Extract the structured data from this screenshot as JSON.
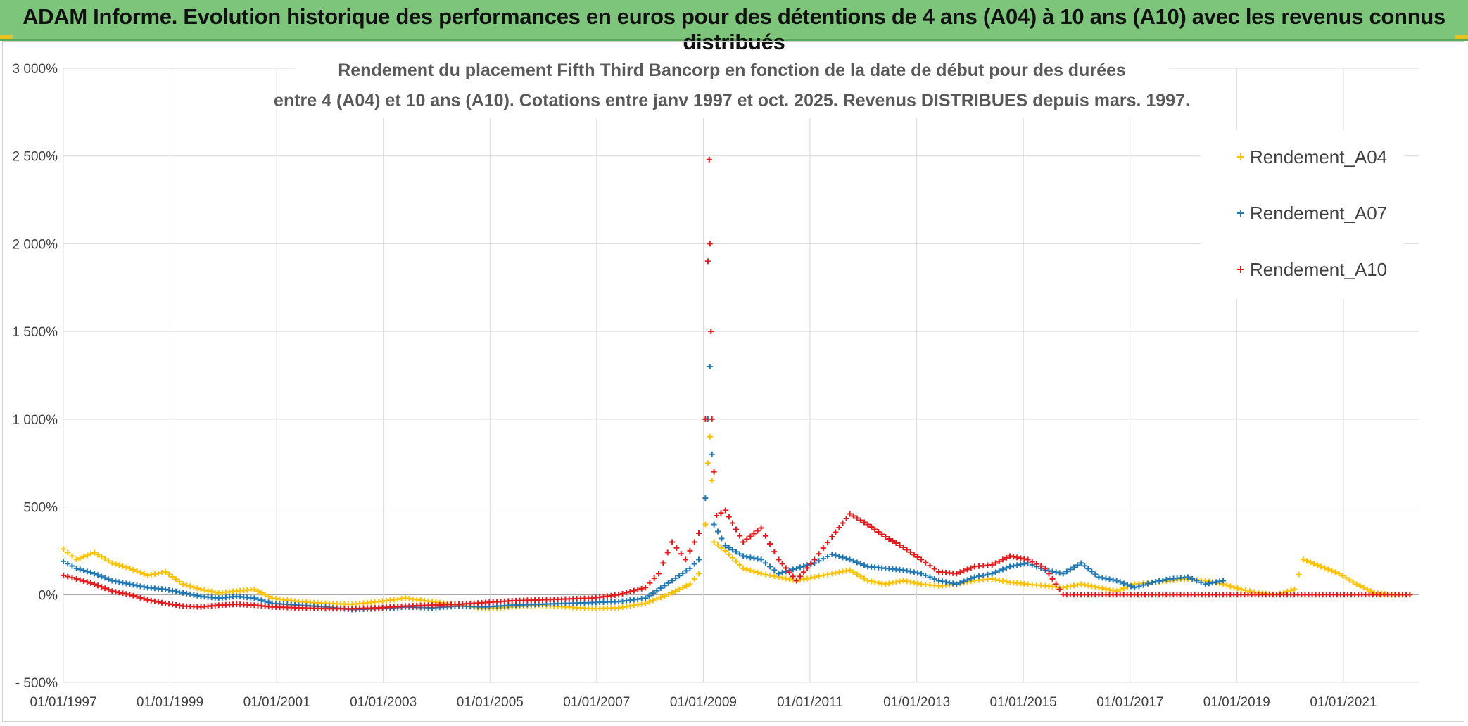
{
  "banner": {
    "text": "ADAM Informe. Evolution historique des performances en euros pour des détentions de 4 ans (A04) à 10 ans (A10) avec les revenus connus distribués"
  },
  "chart_data": {
    "type": "scatter",
    "title_lines": [
      "Rendement du placement Fifth Third Bancorp en fonction de la date de début pour des durées",
      "entre 4 (A04) et 10 ans (A10). Cotations entre janv 1997 et oct. 2025. Revenus DISTRIBUES depuis mars. 1997."
    ],
    "xlabel": "",
    "ylabel": "",
    "x_range": [
      "1997-01-01",
      "2022-06-01"
    ],
    "ylim": [
      -500,
      3000
    ],
    "y_ticks": [
      -500,
      0,
      500,
      1000,
      1500,
      2000,
      2500,
      3000
    ],
    "y_tick_labels": [
      "- 500%",
      "0%",
      "500%",
      "1 000%",
      "1 500%",
      "2 000%",
      "2 500%",
      "3 000%"
    ],
    "x_ticks": [
      "1997-01-01",
      "1999-01-01",
      "2001-01-01",
      "2003-01-01",
      "2005-01-01",
      "2007-01-01",
      "2009-01-01",
      "2011-01-01",
      "2013-01-01",
      "2015-01-01",
      "2017-01-01",
      "2019-01-01",
      "2021-01-01"
    ],
    "x_tick_labels": [
      "01/01/1997",
      "01/01/1999",
      "01/01/2001",
      "01/01/2003",
      "01/01/2005",
      "01/01/2007",
      "01/01/2009",
      "01/01/2011",
      "01/01/2013",
      "01/01/2015",
      "01/01/2017",
      "01/01/2019",
      "01/01/2021"
    ],
    "grid": true,
    "legend_position": "top-right",
    "marker": "+",
    "series": [
      {
        "name": "Rendement_A04",
        "color": "#ffc000",
        "points": [
          [
            "1997-01-01",
            260
          ],
          [
            "1997-04-01",
            200
          ],
          [
            "1997-08-01",
            240
          ],
          [
            "1997-12-01",
            180
          ],
          [
            "1998-04-01",
            150
          ],
          [
            "1998-08-01",
            110
          ],
          [
            "1998-12-01",
            130
          ],
          [
            "1999-04-01",
            60
          ],
          [
            "1999-08-01",
            30
          ],
          [
            "1999-12-01",
            10
          ],
          [
            "2000-04-01",
            20
          ],
          [
            "2000-08-01",
            30
          ],
          [
            "2000-12-01",
            -20
          ],
          [
            "2001-06-01",
            -40
          ],
          [
            "2001-12-01",
            -50
          ],
          [
            "2002-06-01",
            -55
          ],
          [
            "2002-12-01",
            -40
          ],
          [
            "2003-06-01",
            -20
          ],
          [
            "2003-12-01",
            -40
          ],
          [
            "2004-06-01",
            -60
          ],
          [
            "2004-12-01",
            -80
          ],
          [
            "2005-06-01",
            -70
          ],
          [
            "2005-12-01",
            -60
          ],
          [
            "2006-06-01",
            -70
          ],
          [
            "2006-12-01",
            -80
          ],
          [
            "2007-06-01",
            -75
          ],
          [
            "2007-12-01",
            -50
          ],
          [
            "2008-06-01",
            10
          ],
          [
            "2008-10-01",
            60
          ],
          [
            "2008-12-01",
            120
          ],
          [
            "2009-01-15",
            400
          ],
          [
            "2009-02-01",
            750
          ],
          [
            "2009-02-15",
            900
          ],
          [
            "2009-03-01",
            650
          ],
          [
            "2009-03-15",
            300
          ],
          [
            "2009-06-01",
            250
          ],
          [
            "2009-10-01",
            150
          ],
          [
            "2010-02-01",
            120
          ],
          [
            "2010-06-01",
            100
          ],
          [
            "2010-10-01",
            80
          ],
          [
            "2011-02-01",
            100
          ],
          [
            "2011-06-01",
            120
          ],
          [
            "2011-10-01",
            140
          ],
          [
            "2012-02-01",
            80
          ],
          [
            "2012-06-01",
            60
          ],
          [
            "2012-10-01",
            80
          ],
          [
            "2013-02-01",
            60
          ],
          [
            "2013-06-01",
            50
          ],
          [
            "2013-10-01",
            60
          ],
          [
            "2014-02-01",
            80
          ],
          [
            "2014-06-01",
            90
          ],
          [
            "2014-10-01",
            70
          ],
          [
            "2015-02-01",
            60
          ],
          [
            "2015-06-01",
            50
          ],
          [
            "2015-10-01",
            40
          ],
          [
            "2016-02-01",
            60
          ],
          [
            "2016-06-01",
            40
          ],
          [
            "2016-10-01",
            20
          ],
          [
            "2017-02-01",
            60
          ],
          [
            "2017-06-01",
            70
          ],
          [
            "2017-10-01",
            80
          ],
          [
            "2018-02-01",
            90
          ],
          [
            "2018-06-01",
            80
          ],
          [
            "2018-10-01",
            60
          ],
          [
            "2019-02-01",
            30
          ],
          [
            "2019-06-01",
            10
          ],
          [
            "2019-10-01",
            0
          ],
          [
            "2020-02-01",
            30
          ],
          [
            "2020-04-01",
            200
          ],
          [
            "2020-08-01",
            160
          ],
          [
            "2020-12-01",
            120
          ],
          [
            "2021-04-01",
            60
          ],
          [
            "2021-08-01",
            10
          ],
          [
            "2021-12-01",
            0
          ],
          [
            "2022-04-01",
            0
          ]
        ]
      },
      {
        "name": "Rendement_A07",
        "color": "#1f77b4",
        "points": [
          [
            "1997-01-01",
            190
          ],
          [
            "1997-04-01",
            150
          ],
          [
            "1997-08-01",
            120
          ],
          [
            "1997-12-01",
            80
          ],
          [
            "1998-04-01",
            60
          ],
          [
            "1998-08-01",
            40
          ],
          [
            "1998-12-01",
            30
          ],
          [
            "1999-04-01",
            10
          ],
          [
            "1999-08-01",
            -10
          ],
          [
            "1999-12-01",
            -20
          ],
          [
            "2000-04-01",
            -10
          ],
          [
            "2000-08-01",
            -20
          ],
          [
            "2000-12-01",
            -50
          ],
          [
            "2001-06-01",
            -60
          ],
          [
            "2001-12-01",
            -70
          ],
          [
            "2002-06-01",
            -85
          ],
          [
            "2002-12-01",
            -80
          ],
          [
            "2003-06-01",
            -70
          ],
          [
            "2003-12-01",
            -75
          ],
          [
            "2004-06-01",
            -65
          ],
          [
            "2004-12-01",
            -70
          ],
          [
            "2005-06-01",
            -60
          ],
          [
            "2005-12-01",
            -55
          ],
          [
            "2006-06-01",
            -50
          ],
          [
            "2006-12-01",
            -45
          ],
          [
            "2007-06-01",
            -40
          ],
          [
            "2007-12-01",
            -20
          ],
          [
            "2008-06-01",
            80
          ],
          [
            "2008-10-01",
            150
          ],
          [
            "2008-12-01",
            200
          ],
          [
            "2009-01-15",
            550
          ],
          [
            "2009-02-01",
            1000
          ],
          [
            "2009-02-15",
            1300
          ],
          [
            "2009-03-01",
            800
          ],
          [
            "2009-03-15",
            400
          ],
          [
            "2009-06-01",
            280
          ],
          [
            "2009-10-01",
            220
          ],
          [
            "2010-02-01",
            200
          ],
          [
            "2010-06-01",
            120
          ],
          [
            "2010-10-01",
            150
          ],
          [
            "2011-02-01",
            180
          ],
          [
            "2011-06-01",
            230
          ],
          [
            "2011-10-01",
            200
          ],
          [
            "2012-02-01",
            160
          ],
          [
            "2012-06-01",
            150
          ],
          [
            "2012-10-01",
            140
          ],
          [
            "2013-02-01",
            120
          ],
          [
            "2013-06-01",
            80
          ],
          [
            "2013-10-01",
            60
          ],
          [
            "2014-02-01",
            100
          ],
          [
            "2014-06-01",
            120
          ],
          [
            "2014-10-01",
            160
          ],
          [
            "2015-02-01",
            180
          ],
          [
            "2015-06-01",
            140
          ],
          [
            "2015-10-01",
            120
          ],
          [
            "2016-02-01",
            180
          ],
          [
            "2016-06-01",
            100
          ],
          [
            "2016-10-01",
            80
          ],
          [
            "2017-02-01",
            40
          ],
          [
            "2017-06-01",
            70
          ],
          [
            "2017-10-01",
            90
          ],
          [
            "2018-02-01",
            100
          ],
          [
            "2018-06-01",
            60
          ],
          [
            "2018-10-01",
            80
          ]
        ]
      },
      {
        "name": "Rendement_A10",
        "color": "#e31a1c",
        "points": [
          [
            "1997-01-01",
            110
          ],
          [
            "1997-04-01",
            90
          ],
          [
            "1997-08-01",
            60
          ],
          [
            "1997-12-01",
            20
          ],
          [
            "1998-04-01",
            0
          ],
          [
            "1998-08-01",
            -30
          ],
          [
            "1998-12-01",
            -50
          ],
          [
            "1999-04-01",
            -65
          ],
          [
            "1999-08-01",
            -70
          ],
          [
            "1999-12-01",
            -60
          ],
          [
            "2000-04-01",
            -55
          ],
          [
            "2000-08-01",
            -60
          ],
          [
            "2000-12-01",
            -70
          ],
          [
            "2001-06-01",
            -75
          ],
          [
            "2001-12-01",
            -80
          ],
          [
            "2002-06-01",
            -80
          ],
          [
            "2002-12-01",
            -75
          ],
          [
            "2003-06-01",
            -65
          ],
          [
            "2003-12-01",
            -60
          ],
          [
            "2004-06-01",
            -55
          ],
          [
            "2004-12-01",
            -45
          ],
          [
            "2005-06-01",
            -35
          ],
          [
            "2005-12-01",
            -30
          ],
          [
            "2006-06-01",
            -25
          ],
          [
            "2006-12-01",
            -20
          ],
          [
            "2007-06-01",
            0
          ],
          [
            "2007-12-01",
            40
          ],
          [
            "2008-03-01",
            120
          ],
          [
            "2008-06-01",
            300
          ],
          [
            "2008-09-01",
            200
          ],
          [
            "2008-12-01",
            350
          ],
          [
            "2009-01-15",
            1000
          ],
          [
            "2009-02-01",
            1900
          ],
          [
            "2009-02-10",
            2480
          ],
          [
            "2009-02-15",
            2000
          ],
          [
            "2009-02-22",
            1500
          ],
          [
            "2009-03-01",
            1000
          ],
          [
            "2009-03-15",
            700
          ],
          [
            "2009-04-01",
            450
          ],
          [
            "2009-06-01",
            480
          ],
          [
            "2009-10-01",
            300
          ],
          [
            "2010-02-01",
            380
          ],
          [
            "2010-06-01",
            200
          ],
          [
            "2010-10-01",
            80
          ],
          [
            "2011-02-01",
            200
          ],
          [
            "2011-06-01",
            330
          ],
          [
            "2011-10-01",
            460
          ],
          [
            "2012-02-01",
            400
          ],
          [
            "2012-06-01",
            330
          ],
          [
            "2012-10-01",
            270
          ],
          [
            "2013-02-01",
            200
          ],
          [
            "2013-06-01",
            130
          ],
          [
            "2013-10-01",
            120
          ],
          [
            "2014-02-01",
            160
          ],
          [
            "2014-06-01",
            170
          ],
          [
            "2014-10-01",
            220
          ],
          [
            "2015-02-01",
            200
          ],
          [
            "2015-06-01",
            150
          ],
          [
            "2015-10-01",
            0
          ],
          [
            "2016-06-01",
            0
          ],
          [
            "2017-06-01",
            0
          ],
          [
            "2018-06-01",
            0
          ],
          [
            "2019-06-01",
            0
          ],
          [
            "2020-06-01",
            0
          ],
          [
            "2021-06-01",
            0
          ],
          [
            "2022-04-01",
            0
          ]
        ]
      }
    ]
  }
}
